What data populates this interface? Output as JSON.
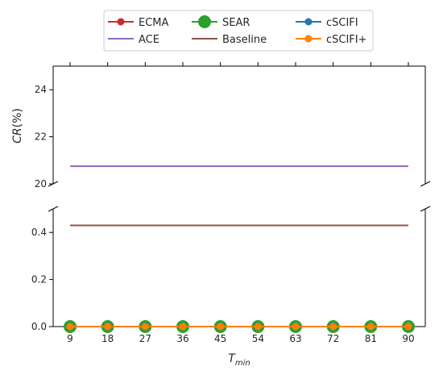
{
  "chart_data": {
    "type": "line",
    "title": "",
    "xlabel": "T",
    "xlabel_sub": "min",
    "ylabel": "CR",
    "ylabel_suffix": "(%)",
    "x": [
      9,
      18,
      27,
      36,
      45,
      54,
      63,
      72,
      81,
      90
    ],
    "x_tick_labels": [
      "9",
      "18",
      "27",
      "36",
      "45",
      "54",
      "63",
      "72",
      "81",
      "90"
    ],
    "y_axis_broken": true,
    "upper_ylim": [
      20,
      25
    ],
    "upper_y_ticks": [
      20,
      22,
      24
    ],
    "upper_y_tick_labels": [
      "20",
      "22",
      "24"
    ],
    "lower_ylim": [
      0,
      0.5
    ],
    "lower_y_ticks": [
      0.0,
      0.2,
      0.4
    ],
    "lower_y_tick_labels": [
      "0.0",
      "0.2",
      "0.4"
    ],
    "grid": false,
    "legend_position": "top-center, above plot",
    "series": [
      {
        "name": "ECMA",
        "color": "#d62728",
        "marker": "circle",
        "values": [
          0,
          0,
          0,
          0,
          0,
          0,
          0,
          0,
          0,
          0
        ]
      },
      {
        "name": "SEAR",
        "color": "#2ca02c",
        "marker": "circle-large",
        "values": [
          0,
          0,
          0,
          0,
          0,
          0,
          0,
          0,
          0,
          0
        ]
      },
      {
        "name": "cSCIFI",
        "color": "#1f77b4",
        "marker": "circle",
        "values": [
          0,
          0,
          0,
          0,
          0,
          0,
          0,
          0,
          0,
          0
        ]
      },
      {
        "name": "ACE",
        "color": "#9467bd",
        "marker": "none",
        "values": [
          20.75,
          20.75,
          20.75,
          20.75,
          20.75,
          20.75,
          20.75,
          20.75,
          20.75,
          20.75
        ]
      },
      {
        "name": "Baseline",
        "color": "#8c564b",
        "marker": "none",
        "values": [
          0.43,
          0.43,
          0.43,
          0.43,
          0.43,
          0.43,
          0.43,
          0.43,
          0.43,
          0.43
        ]
      },
      {
        "name": "cSCIFI+",
        "color": "#ff7f0e",
        "marker": "circle",
        "values": [
          0,
          0,
          0,
          0,
          0,
          0,
          0,
          0,
          0,
          0
        ]
      }
    ]
  }
}
